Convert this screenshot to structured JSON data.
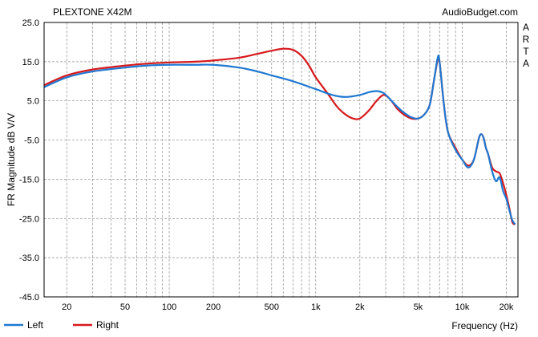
{
  "chart_data": {
    "type": "line",
    "title": "PLEXTONE X42M",
    "source": "AudioBudget.com",
    "watermark": "ARTA",
    "xlabel": "Frequency (Hz)",
    "ylabel": "FR Magnitude dB V/V",
    "x_scale": "log",
    "xlim": [
      14,
      24000
    ],
    "ylim": [
      -45,
      25
    ],
    "grid": true,
    "legend_position": "bottom-left",
    "y_ticks": [
      "25.0",
      "15.0",
      "5.0",
      "-5.0",
      "-15.0",
      "-25.0",
      "-35.0",
      "-45.0"
    ],
    "y_tick_values": [
      25,
      15,
      5,
      -5,
      -15,
      -25,
      -35,
      -45
    ],
    "x_ticks": [
      "20",
      "50",
      "100",
      "200",
      "500",
      "1k",
      "2k",
      "5k",
      "10k",
      "20k"
    ],
    "x_tick_values": [
      20,
      50,
      100,
      200,
      500,
      1000,
      2000,
      5000,
      10000,
      20000
    ],
    "series": [
      {
        "name": "Left",
        "color": "#1f78d1",
        "x": [
          14,
          20,
          30,
          50,
          70,
          100,
          150,
          200,
          300,
          400,
          500,
          700,
          1000,
          1300,
          1600,
          2000,
          2300,
          2600,
          2900,
          3200,
          3600,
          4000,
          4500,
          5000,
          5500,
          6000,
          6400,
          6800,
          7000,
          7500,
          8000,
          9000,
          10000,
          11000,
          12000,
          13000,
          13500,
          14000,
          14500,
          15000,
          16000,
          17000,
          18000,
          19000,
          20000,
          21000,
          22000,
          23000
        ],
        "values": [
          8.5,
          11,
          12.5,
          13.5,
          14,
          14.2,
          14.2,
          14.2,
          13.5,
          12.5,
          11.5,
          10,
          8,
          6.5,
          6,
          6.5,
          7.2,
          7.5,
          7,
          5.5,
          3.5,
          2,
          0.8,
          0.5,
          1.5,
          4,
          10,
          16,
          15,
          4,
          -3,
          -7.5,
          -10,
          -12,
          -10,
          -4.5,
          -3.5,
          -4.5,
          -7,
          -8.5,
          -13,
          -15.5,
          -14.5,
          -18,
          -20,
          -23,
          -25.5,
          -26.5
        ]
      },
      {
        "name": "Right",
        "color": "#d7191c",
        "x": [
          14,
          20,
          30,
          50,
          70,
          100,
          150,
          200,
          300,
          400,
          500,
          600,
          700,
          800,
          900,
          1000,
          1200,
          1400,
          1600,
          1800,
          2000,
          2300,
          2600,
          2900,
          3200,
          3600,
          4000,
          4500,
          5000,
          5500,
          6000,
          6400,
          6800,
          7000,
          7500,
          8000,
          9000,
          10000,
          11000,
          12000,
          13000,
          13500,
          14000,
          14500,
          15000,
          16000,
          17000,
          18000,
          19000,
          20000,
          21000,
          22000,
          23000
        ],
        "values": [
          9,
          11.5,
          13,
          14,
          14.5,
          14.8,
          15,
          15.3,
          16,
          17,
          17.8,
          18.3,
          18,
          16.5,
          14,
          11,
          7,
          3.5,
          1.5,
          0.5,
          0.5,
          2.5,
          5,
          6.5,
          5.5,
          3,
          1.5,
          0.5,
          0.5,
          1.5,
          4,
          10,
          15.5,
          15,
          4,
          -3,
          -7,
          -10,
          -11.5,
          -10,
          -4.5,
          -3.5,
          -4.5,
          -7,
          -8.5,
          -12,
          -13,
          -13.5,
          -16,
          -19,
          -22.5,
          -26,
          -26.5
        ]
      }
    ]
  }
}
